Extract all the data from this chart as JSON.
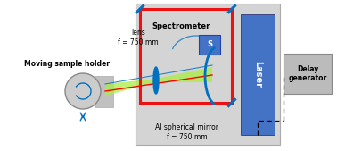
{
  "bg_color": "#d4d4d4",
  "white_bg": "#ffffff",
  "laser_color": "#4472c4",
  "red_line_color": "#ee1111",
  "blue_color": "#0070c0",
  "green_beam_color": "#aaee44",
  "delay_box_color": "#bbbbbb",
  "spectrometer_label": "Spectrometer",
  "laser_label": "Laser",
  "lens_label": "lens\nf = 750 mm",
  "mirror_label": "Al spherical mirror\nf = 750 mm",
  "sample_label": "Moving sample holder",
  "delay_label": "Delay\ngenerator",
  "s_label": "S"
}
